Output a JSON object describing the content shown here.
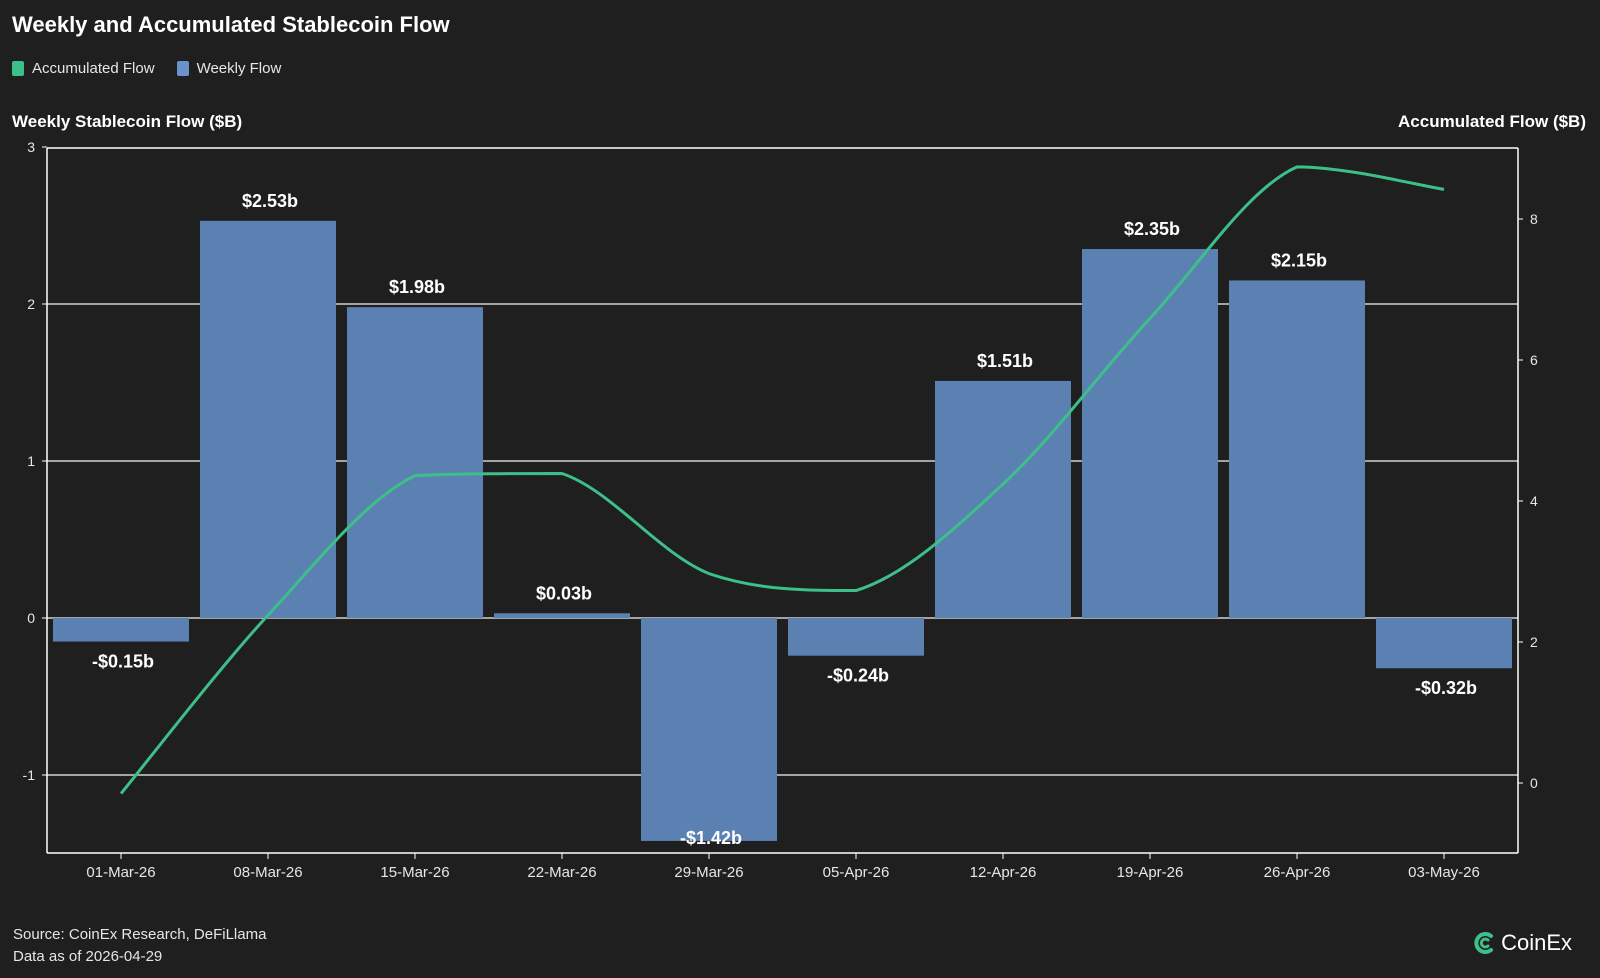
{
  "title": "Weekly and Accumulated Stablecoin Flow",
  "legend": {
    "items": [
      {
        "label": "Accumulated Flow",
        "color": "#3dbf8a"
      },
      {
        "label": "Weekly Flow",
        "color": "#6a93cb"
      }
    ]
  },
  "axis_titles": {
    "left": "Weekly Stablecoin Flow ($B)",
    "right": "Accumulated Flow ($B)"
  },
  "footer": {
    "source": "Source: CoinEx Research, DeFiLlama",
    "asof": "Data as of 2026-04-29"
  },
  "logo": {
    "text": "CoinEx",
    "icon": "coinex-logo-icon",
    "color": "#3dbf8a"
  },
  "colors": {
    "background": "#1f1f1f",
    "bar": "#5b81b3",
    "line": "#3dbf8a",
    "grid": "#ffffff"
  },
  "chart_data": {
    "type": "bar",
    "categories": [
      "01-Mar-26",
      "08-Mar-26",
      "15-Mar-26",
      "22-Mar-26",
      "29-Mar-26",
      "05-Apr-26",
      "12-Apr-26",
      "19-Apr-26",
      "26-Apr-26",
      "03-May-26"
    ],
    "series": [
      {
        "name": "Weekly Flow",
        "type": "bar",
        "axis": "left",
        "values": [
          -0.15,
          2.53,
          1.98,
          0.03,
          -1.42,
          -0.24,
          1.51,
          2.35,
          2.15,
          -0.32
        ],
        "labels": [
          "-$0.15b",
          "$2.53b",
          "$1.98b",
          "$0.03b",
          "-$1.42b",
          "-$0.24b",
          "$1.51b",
          "$2.35b",
          "$2.15b",
          "-$0.32b"
        ]
      },
      {
        "name": "Accumulated Flow",
        "type": "line",
        "axis": "right",
        "values": [
          -0.15,
          2.38,
          4.36,
          4.39,
          2.97,
          2.73,
          4.24,
          6.59,
          8.74,
          8.42
        ]
      }
    ],
    "left_axis": {
      "ticks": [
        "3",
        "2",
        "1",
        "0",
        "-1"
      ],
      "tick_values": [
        3,
        2,
        1,
        0,
        -1
      ],
      "range": [
        -1.5,
        3
      ]
    },
    "right_axis": {
      "ticks": [
        "8",
        "6",
        "4",
        "2",
        "0"
      ],
      "tick_values": [
        8,
        6,
        4,
        2,
        0
      ],
      "range": [
        -1,
        9
      ]
    },
    "grid": true,
    "legend_position": "top-left"
  }
}
